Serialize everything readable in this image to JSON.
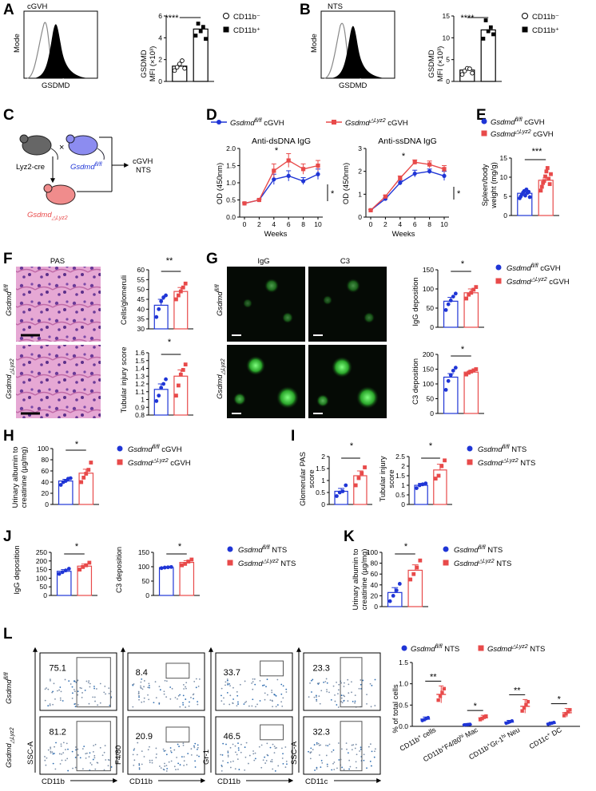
{
  "colors": {
    "blue": "#1f35d6",
    "red": "#e84a4a",
    "black": "#000000",
    "green": "#2ea82e",
    "pink": "#e4a0c8",
    "purple": "#b67fc8"
  },
  "panels": {
    "A": "A",
    "B": "B",
    "C": "C",
    "D": "D",
    "E": "E",
    "F": "F",
    "G": "G",
    "H": "H",
    "I": "I",
    "J": "J",
    "K": "K",
    "L": "L"
  },
  "A": {
    "histo_title": "cGVH",
    "y_label": "Mode",
    "x_label": "GSDMD",
    "bar_y_label1": "GSDMD",
    "bar_y_label2": "MFI (×10³)",
    "sig": "****",
    "legend": [
      "CD11b⁻",
      "CD11b⁺"
    ]
  },
  "B": {
    "histo_title": "NTS",
    "y_label": "Mode",
    "x_label": "GSDMD",
    "bar_y_label1": "GSDMD",
    "bar_y_label2": "MFI (×10³)",
    "sig": "****",
    "legend": [
      "CD11b⁻",
      "CD11b⁺"
    ]
  },
  "C": {
    "mouse1": "Lyz2-cre",
    "mouse2": "Gsdmd",
    "mouse2_sup": "fl/fl",
    "cross": "×",
    "offspring": "Gsdmd",
    "offspring_sub": "△Lyz2",
    "outcome1": "cGVH",
    "outcome2": "NTS"
  },
  "D": {
    "legend": [
      {
        "gene": "Gsdmd",
        "sup": "fl/fl",
        "tail": " cGVH"
      },
      {
        "gene": "Gsdmd",
        "sup": "△Lyz2",
        "tail": " cGVH"
      }
    ],
    "y_label": "OD (450nm)",
    "x_label": "Weeks",
    "sig_mid": "*",
    "sig_side": "*"
  },
  "E": {
    "legend": [
      {
        "gene": "Gsdmd",
        "sup": "fl/fl",
        "tail": " cGVH"
      },
      {
        "gene": "Gsdmd",
        "sup": "△Lyz2",
        "tail": " cGVH"
      }
    ],
    "y_label1": "Spleen/body",
    "y_label2": "weight (mg/g)",
    "sig": "***"
  },
  "F": {
    "image_title": "PAS",
    "row1": "Gsdmd",
    "row1_sup": "fl/fl",
    "row2": "Gsdmd",
    "row2_sup": "△Lyz2",
    "sig1": "**",
    "sig2": "*"
  },
  "G": {
    "col1": "IgG",
    "col2": "C3",
    "row1": "Gsdmd",
    "row1_sup": "fl/fl",
    "row2": "Gsdmd",
    "row2_sup": "△Lyz2",
    "sig1": "*",
    "sig2": "*",
    "legend": [
      {
        "gene": "Gsdmd",
        "sup": "fl/fl",
        "tail": " cGVH"
      },
      {
        "gene": "Gsdmd",
        "sup": "△Lyz2",
        "tail": " cGVH"
      }
    ]
  },
  "H": {
    "y_label1": "Urinary albumin to",
    "y_label2": "creatinine (µg/mg)",
    "sig": "*",
    "legend": [
      {
        "gene": "Gsdmd",
        "sup": "fl/fl",
        "tail": " cGVH"
      },
      {
        "gene": "Gsdmd",
        "sup": "△Lyz2",
        "tail": " cGVH"
      }
    ]
  },
  "I": {
    "y1a": "Glomerular PAS",
    "y1b": "score",
    "y2a": "Tubular injury",
    "y2b": "score",
    "sig1": "*",
    "sig2": "*",
    "legend": [
      {
        "gene": "Gsdmd",
        "sup": "fl/fl",
        "tail": " NTS"
      },
      {
        "gene": "Gsdmd",
        "sup": "△Lyz2",
        "tail": " NTS"
      }
    ]
  },
  "J": {
    "sig1": "*",
    "sig2": "*",
    "legend": [
      {
        "gene": "Gsdmd",
        "sup": "fl/fl",
        "tail": " NTS"
      },
      {
        "gene": "Gsdmd",
        "sup": "△Lyz2",
        "tail": " NTS"
      }
    ]
  },
  "K": {
    "y_label1": "Urinary albumin to",
    "y_label2": "creatinine (µg/mg)",
    "sig": "*",
    "legend": [
      {
        "gene": "Gsdmd",
        "sup": "fl/fl",
        "tail": " NTS"
      },
      {
        "gene": "Gsdmd",
        "sup": "△Lyz2",
        "tail": " NTS"
      }
    ]
  },
  "L": {
    "row1": "Gsdmd",
    "row1_sup": "fl/fl",
    "row2": "Gsdmd",
    "row2_sup": "△Lyz2",
    "flow": [
      {
        "top": "75.1",
        "bottom": "81.2",
        "xl": "CD11b",
        "yl": "SSC-A"
      },
      {
        "top": "8.4",
        "bottom": "20.9",
        "xl": "CD11b",
        "yl": "F4/80"
      },
      {
        "top": "33.7",
        "bottom": "46.5",
        "xl": "CD11b",
        "yl": "Gr-1"
      },
      {
        "top": "23.3",
        "bottom": "32.3",
        "xl": "CD11c",
        "yl": "SSC-A"
      }
    ],
    "legend": [
      {
        "gene": "Gsdmd",
        "sup": "fl/fl",
        "tail": " NTS"
      },
      {
        "gene": "Gsdmd",
        "sup": "△Lyz2",
        "tail": " NTS"
      }
    ],
    "y_label": "% of total cells",
    "sigs": [
      "**",
      "*",
      "**",
      "*"
    ],
    "cats": [
      {
        "main": "CD11b",
        "sup": "+",
        "rest": " cells"
      },
      {
        "main": "CD11b",
        "sup": "+",
        "rest": "F4/80",
        "sup2": "hi",
        "rest2": " Mac"
      },
      {
        "main": "CD11b",
        "sup": "+",
        "rest": "Gr-1",
        "sup2": "hi",
        "rest2": " Neu"
      },
      {
        "main": "CD11c",
        "sup": "+",
        "rest": " DC"
      }
    ]
  },
  "chart_data": [
    {
      "panel": "A",
      "type": "bar",
      "categories": [
        "CD11b⁻",
        "CD11b⁺"
      ],
      "values": [
        1.4,
        4.8
      ],
      "ylim": [
        0,
        6
      ],
      "yticks": [
        0,
        2,
        4,
        6
      ],
      "sig": "****",
      "points": [
        [
          1.0,
          1.3,
          1.6,
          1.9,
          1.2
        ],
        [
          4.2,
          5.3,
          4.6,
          5.0,
          3.9
        ]
      ]
    },
    {
      "panel": "B",
      "type": "bar",
      "categories": [
        "CD11b⁻",
        "CD11b⁺"
      ],
      "values": [
        2.6,
        11.8
      ],
      "ylim": [
        0,
        15
      ],
      "yticks": [
        0,
        5,
        10,
        15
      ],
      "sig": "****",
      "points": [
        [
          1.6,
          2.4,
          3.0,
          2.9,
          1.9
        ],
        [
          9.8,
          14.0,
          11.5,
          12.4,
          10.8
        ]
      ]
    },
    {
      "panel": "D1",
      "type": "line",
      "title": "Anti-dsDNA IgG",
      "x": [
        0,
        2,
        4,
        6,
        8,
        10
      ],
      "ylim": [
        0,
        2.0
      ],
      "yticks": [
        0.0,
        0.5,
        1.0,
        1.5,
        2.0
      ],
      "xticks": [
        0,
        2,
        4,
        6,
        8,
        10
      ],
      "series": [
        {
          "values": [
            0.4,
            0.5,
            1.1,
            1.2,
            1.05,
            1.25
          ],
          "err": [
            0.02,
            0.03,
            0.15,
            0.15,
            0.1,
            0.15
          ]
        },
        {
          "values": [
            0.4,
            0.5,
            1.35,
            1.65,
            1.4,
            1.5
          ],
          "err": [
            0.02,
            0.03,
            0.2,
            0.2,
            0.15,
            0.15
          ]
        }
      ]
    },
    {
      "panel": "D2",
      "type": "line",
      "title": "Anti-ssDNA IgG",
      "x": [
        0,
        2,
        4,
        6,
        8,
        10
      ],
      "ylim": [
        0,
        3
      ],
      "yticks": [
        0,
        1,
        2,
        3
      ],
      "xticks": [
        0,
        2,
        4,
        6,
        8,
        10
      ],
      "series": [
        {
          "values": [
            0.3,
            0.8,
            1.5,
            1.9,
            2.0,
            1.8
          ],
          "err": [
            0.03,
            0.05,
            0.1,
            0.15,
            0.1,
            0.2
          ]
        },
        {
          "values": [
            0.3,
            0.9,
            1.7,
            2.4,
            2.3,
            2.1
          ],
          "err": [
            0.03,
            0.05,
            0.1,
            0.1,
            0.15,
            0.15
          ]
        }
      ]
    },
    {
      "panel": "E",
      "type": "bar",
      "ylim": [
        0,
        15
      ],
      "yticks": [
        0,
        5,
        10,
        15
      ],
      "values": [
        5.8,
        9.2
      ],
      "err": [
        0.4,
        0.6
      ],
      "points": [
        [
          4.5,
          5.0,
          5.5,
          6.0,
          6.4,
          5.2,
          6.8,
          5.9,
          6.2,
          4.8
        ],
        [
          6.5,
          7.5,
          8.5,
          9.0,
          10.2,
          11.5,
          12.4,
          9.6,
          8.2,
          10.8
        ]
      ]
    },
    {
      "panel": "F1",
      "type": "bar",
      "ylim": [
        30,
        60
      ],
      "yticks": [
        30,
        35,
        40,
        45,
        50,
        55,
        60
      ],
      "values": [
        42,
        49
      ],
      "err": [
        3,
        2
      ],
      "points": [
        [
          36,
          40,
          44,
          46,
          47
        ],
        [
          45,
          47,
          49,
          51,
          53
        ]
      ]
    },
    {
      "panel": "F2",
      "type": "bar",
      "ylim": [
        0.8,
        1.6
      ],
      "yticks": [
        0.8,
        0.9,
        1.0,
        1.1,
        1.2,
        1.3,
        1.4,
        1.5,
        1.6
      ],
      "values": [
        1.13,
        1.3
      ],
      "err": [
        0.07,
        0.08
      ],
      "points": [
        [
          0.98,
          1.05,
          1.15,
          1.2,
          1.26
        ],
        [
          1.05,
          1.18,
          1.32,
          1.38,
          1.45
        ]
      ]
    },
    {
      "panel": "G1",
      "type": "bar",
      "ylim": [
        0,
        150
      ],
      "yticks": [
        0,
        50,
        100,
        150
      ],
      "values": [
        68,
        90
      ],
      "err": [
        10,
        10
      ],
      "points": [
        [
          45,
          60,
          70,
          80,
          88
        ],
        [
          75,
          85,
          90,
          98,
          105
        ]
      ]
    },
    {
      "panel": "G2",
      "type": "bar",
      "ylim": [
        0,
        200
      ],
      "yticks": [
        0,
        50,
        100,
        150,
        200
      ],
      "values": [
        123,
        140
      ],
      "err": [
        12,
        6
      ],
      "points": [
        [
          80,
          110,
          130,
          145,
          155
        ],
        [
          132,
          138,
          142,
          146,
          150
        ]
      ]
    },
    {
      "panel": "H",
      "type": "bar",
      "ylim": [
        0,
        100
      ],
      "yticks": [
        0,
        20,
        40,
        60,
        80,
        100
      ],
      "values": [
        42,
        56
      ],
      "err": [
        3,
        7
      ],
      "points": [
        [
          35,
          40,
          42,
          46,
          47
        ],
        [
          40,
          48,
          55,
          62,
          75
        ]
      ]
    },
    {
      "panel": "I1",
      "type": "bar",
      "ylim": [
        0,
        2.0
      ],
      "yticks": [
        0,
        0.5,
        1.0,
        1.5,
        2.0
      ],
      "values": [
        0.55,
        1.2
      ],
      "err": [
        0.12,
        0.2
      ],
      "points": [
        [
          0.35,
          0.5,
          0.55,
          0.8
        ],
        [
          0.8,
          1.1,
          1.3,
          1.55
        ]
      ]
    },
    {
      "panel": "I2",
      "type": "bar",
      "ylim": [
        0,
        2.5
      ],
      "yticks": [
        0,
        0.5,
        1.0,
        1.5,
        2.0,
        2.5
      ],
      "values": [
        1.0,
        1.8
      ],
      "err": [
        0.1,
        0.3
      ],
      "points": [
        [
          0.85,
          1.0,
          1.05,
          1.1
        ],
        [
          1.35,
          1.5,
          2.0,
          2.3
        ]
      ]
    },
    {
      "panel": "J1",
      "type": "bar",
      "ylim": [
        0,
        250
      ],
      "yticks": [
        0,
        50,
        100,
        150,
        200,
        250
      ],
      "values": [
        140,
        170
      ],
      "err": [
        10,
        12
      ],
      "points": [
        [
          125,
          135,
          145,
          155
        ],
        [
          150,
          165,
          175,
          190
        ]
      ]
    },
    {
      "panel": "J2",
      "type": "bar",
      "ylim": [
        0,
        150
      ],
      "yticks": [
        0,
        50,
        100,
        150
      ],
      "values": [
        97,
        115
      ],
      "err": [
        2,
        6
      ],
      "points": [
        [
          95,
          97,
          98,
          99
        ],
        [
          105,
          110,
          118,
          125
        ]
      ]
    },
    {
      "panel": "K",
      "type": "bar",
      "ylim": [
        0,
        100
      ],
      "yticks": [
        0,
        20,
        40,
        60,
        80,
        100
      ],
      "values": [
        26,
        67
      ],
      "err": [
        9,
        10
      ],
      "points": [
        [
          10,
          20,
          30,
          42
        ],
        [
          50,
          60,
          72,
          85
        ]
      ]
    },
    {
      "panel": "L",
      "type": "bar",
      "ylim": [
        0,
        1.5
      ],
      "yticks": [
        0.0,
        0.5,
        1.0,
        1.5
      ],
      "categories": [
        "CD11b⁺ cells",
        "CD11b⁺F4/80ʰⁱ Mac",
        "CD11b⁺Gr-1ʰⁱ Neu",
        "CD11c⁺ DC"
      ],
      "series": [
        {
          "values": [
            0.17,
            0.04,
            0.1,
            0.07
          ],
          "err": [
            0.05,
            0.01,
            0.04,
            0.03
          ]
        },
        {
          "values": [
            0.75,
            0.2,
            0.47,
            0.32
          ],
          "err": [
            0.2,
            0.06,
            0.16,
            0.1
          ]
        }
      ]
    }
  ]
}
